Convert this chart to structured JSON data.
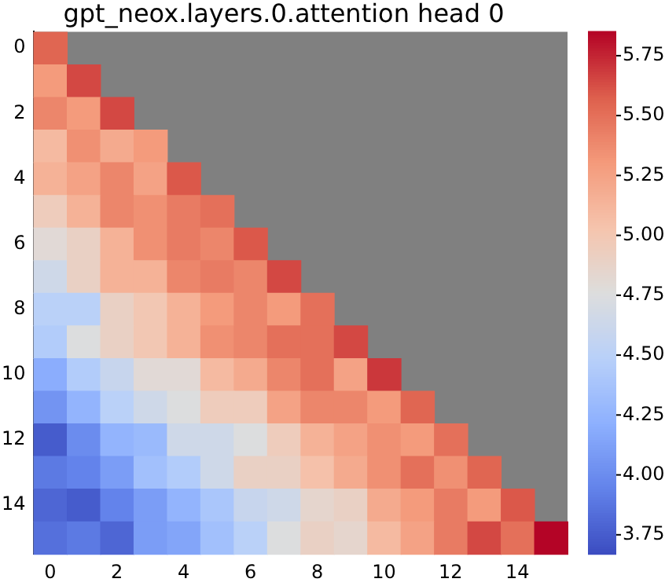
{
  "chart_data": {
    "type": "heatmap",
    "title": "gpt_neox.layers.0.attention head 0",
    "categories": [
      "0",
      null,
      "2",
      null,
      "4",
      null,
      "6",
      null,
      "8",
      null,
      "10",
      null,
      "12",
      null,
      "14",
      null
    ],
    "y_categories": [
      "0",
      null,
      "2",
      null,
      "4",
      null,
      "6",
      null,
      "8",
      null,
      "10",
      null,
      "12",
      null,
      "14",
      null
    ],
    "cells": [
      [
        5.55,
        null,
        null,
        null,
        null,
        null,
        null,
        null,
        null,
        null,
        null,
        null,
        null,
        null,
        null,
        null
      ],
      [
        5.3,
        5.65,
        null,
        null,
        null,
        null,
        null,
        null,
        null,
        null,
        null,
        null,
        null,
        null,
        null,
        null
      ],
      [
        5.4,
        5.3,
        5.65,
        null,
        null,
        null,
        null,
        null,
        null,
        null,
        null,
        null,
        null,
        null,
        null,
        null
      ],
      [
        5.1,
        5.35,
        5.2,
        5.3,
        null,
        null,
        null,
        null,
        null,
        null,
        null,
        null,
        null,
        null,
        null,
        null
      ],
      [
        5.15,
        5.25,
        5.4,
        5.25,
        5.6,
        null,
        null,
        null,
        null,
        null,
        null,
        null,
        null,
        null,
        null,
        null
      ],
      [
        4.95,
        5.15,
        5.4,
        5.35,
        5.45,
        5.5,
        null,
        null,
        null,
        null,
        null,
        null,
        null,
        null,
        null,
        null
      ],
      [
        4.8,
        4.9,
        5.15,
        5.35,
        5.45,
        5.4,
        5.6,
        null,
        null,
        null,
        null,
        null,
        null,
        null,
        null,
        null
      ],
      [
        4.65,
        4.9,
        5.15,
        5.15,
        5.4,
        5.45,
        5.4,
        5.65,
        null,
        null,
        null,
        null,
        null,
        null,
        null,
        null
      ],
      [
        4.5,
        4.5,
        4.9,
        5.0,
        5.15,
        5.3,
        5.4,
        5.3,
        5.5,
        null,
        null,
        null,
        null,
        null,
        null,
        null
      ],
      [
        4.45,
        4.75,
        4.9,
        5.0,
        5.15,
        5.35,
        5.4,
        5.5,
        5.5,
        5.65,
        null,
        null,
        null,
        null,
        null,
        null
      ],
      [
        4.2,
        4.45,
        4.6,
        4.8,
        4.8,
        5.1,
        5.2,
        5.4,
        5.5,
        5.25,
        5.7,
        null,
        null,
        null,
        null,
        null
      ],
      [
        4.05,
        4.25,
        4.5,
        4.65,
        4.75,
        4.95,
        4.95,
        5.25,
        5.4,
        5.4,
        5.3,
        5.55,
        null,
        null,
        null,
        null
      ],
      [
        3.75,
        4.0,
        4.25,
        4.3,
        4.65,
        4.65,
        4.75,
        4.95,
        5.15,
        5.25,
        5.35,
        5.3,
        5.5,
        null,
        null,
        null
      ],
      [
        3.9,
        3.95,
        4.1,
        4.35,
        4.45,
        4.65,
        4.9,
        4.9,
        5.05,
        5.2,
        5.35,
        5.5,
        5.35,
        5.55,
        null,
        null
      ],
      [
        3.8,
        3.75,
        3.95,
        4.1,
        4.25,
        4.4,
        4.6,
        4.65,
        4.85,
        4.9,
        5.2,
        5.3,
        5.45,
        5.3,
        5.6,
        null
      ],
      [
        3.85,
        3.9,
        3.8,
        4.1,
        4.15,
        4.35,
        4.5,
        4.75,
        4.9,
        4.85,
        5.1,
        5.25,
        5.45,
        5.65,
        5.5,
        5.85
      ]
    ],
    "clim": [
      3.67,
      5.85
    ],
    "cticks": [
      3.75,
      {
        "value": 4,
        "label": "4.00"
      },
      4.25,
      {
        "value": 4.5,
        "label": "4.50"
      },
      4.75,
      {
        "value": 5,
        "label": "5.00"
      },
      5.25,
      {
        "value": 5.5,
        "label": "5.50"
      },
      5.75
    ]
  }
}
